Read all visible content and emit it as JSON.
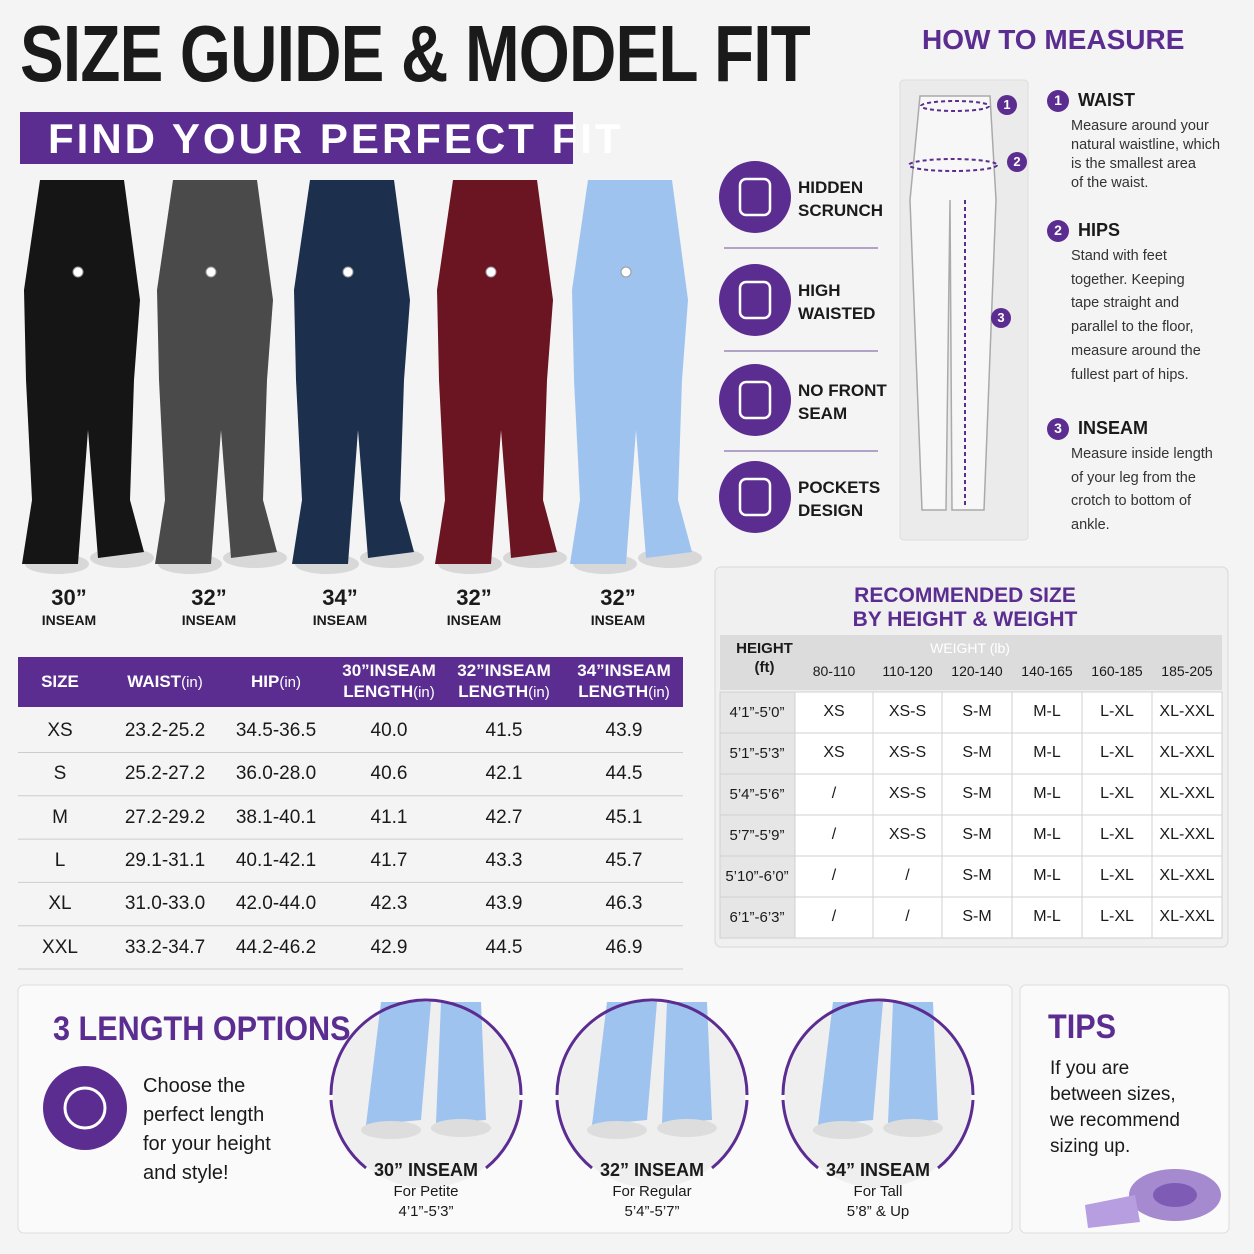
{
  "header": {
    "title": "SIZE GUIDE & MODEL FIT",
    "subtitle": "FIND YOUR PERFECT FIT"
  },
  "models": [
    {
      "inseam": "30”",
      "label": "INSEAM"
    },
    {
      "inseam": "32”",
      "label": "INSEAM"
    },
    {
      "inseam": "34”",
      "label": "INSEAM"
    },
    {
      "inseam": "32”",
      "label": "INSEAM"
    },
    {
      "inseam": "32”",
      "label": "INSEAM"
    }
  ],
  "features": [
    {
      "lines": [
        "HIDDEN",
        "SCRUNCH"
      ]
    },
    {
      "lines": [
        "HIGH",
        "WAISTED"
      ]
    },
    {
      "lines": [
        "NO FRONT",
        "SEAM"
      ]
    },
    {
      "lines": [
        "POCKETS",
        "DESIGN"
      ]
    }
  ],
  "measure": {
    "title": "HOW TO MEASURE",
    "markers": [
      "1",
      "2",
      "3"
    ],
    "steps": [
      {
        "number": "1",
        "title": "WAIST",
        "lines": [
          "Measure around your",
          "natural waistline, which",
          "is the smallest area",
          "of the waist."
        ]
      },
      {
        "number": "2",
        "title": "HIPS",
        "lines": [
          "Stand with feet",
          "together. Keeping",
          "tape straight and",
          "parallel to the floor,",
          "measure around the",
          "fullest part of hips."
        ]
      },
      {
        "number": "3",
        "title": "INSEAM",
        "lines": [
          "Measure inside length",
          "of your leg from the",
          "crotch to bottom of",
          "ankle."
        ]
      }
    ]
  },
  "size_table": {
    "headers": [
      {
        "lines": [
          "SIZE"
        ]
      },
      {
        "lines": [
          "WAIST"
        ],
        "unit": "(in)"
      },
      {
        "lines": [
          "HIP"
        ],
        "unit": "(in)"
      },
      {
        "lines": [
          "30”INSEAM",
          "LENGTH"
        ],
        "unit": "(in)"
      },
      {
        "lines": [
          "32”INSEAM",
          "LENGTH"
        ],
        "unit": "(in)"
      },
      {
        "lines": [
          "34”INSEAM",
          "LENGTH"
        ],
        "unit": "(in)"
      }
    ],
    "rows": [
      [
        "XS",
        "23.2-25.2",
        "34.5-36.5",
        "40.0",
        "41.5",
        "43.9"
      ],
      [
        "S",
        "25.2-27.2",
        "36.0-28.0",
        "40.6",
        "42.1",
        "44.5"
      ],
      [
        "M",
        "27.2-29.2",
        "38.1-40.1",
        "41.1",
        "42.7",
        "45.1"
      ],
      [
        "L",
        "29.1-31.1",
        "40.1-42.1",
        "41.7",
        "43.3",
        "45.7"
      ],
      [
        "XL",
        "31.0-33.0",
        "42.0-44.0",
        "42.3",
        "43.9",
        "46.3"
      ],
      [
        "XXL",
        "33.2-34.7",
        "44.2-46.2",
        "42.9",
        "44.5",
        "46.9"
      ]
    ]
  },
  "recommended": {
    "title": [
      "RECOMMENDED SIZE",
      "BY HEIGHT & WEIGHT"
    ],
    "height_header": [
      "HEIGHT",
      "(ft)"
    ],
    "weight_header": "WEIGHT (lb)",
    "weights": [
      "80-110",
      "110-120",
      "120-140",
      "140-165",
      "160-185",
      "185-205"
    ],
    "rows": [
      {
        "height": "4’1”-5’0”",
        "sizes": [
          "XS",
          "XS-S",
          "S-M",
          "M-L",
          "L-XL",
          "XL-XXL"
        ]
      },
      {
        "height": "5’1”-5’3”",
        "sizes": [
          "XS",
          "XS-S",
          "S-M",
          "M-L",
          "L-XL",
          "XL-XXL"
        ]
      },
      {
        "height": "5’4”-5’6”",
        "sizes": [
          "/",
          "XS-S",
          "S-M",
          "M-L",
          "L-XL",
          "XL-XXL"
        ]
      },
      {
        "height": "5’7”-5’9”",
        "sizes": [
          "/",
          "XS-S",
          "S-M",
          "M-L",
          "L-XL",
          "XL-XXL"
        ]
      },
      {
        "height": "5’10”-6’0”",
        "sizes": [
          "/",
          "/",
          "S-M",
          "M-L",
          "L-XL",
          "XL-XXL"
        ]
      },
      {
        "height": "6’1”-6’3”",
        "sizes": [
          "/",
          "/",
          "S-M",
          "M-L",
          "L-XL",
          "XL-XXL"
        ]
      }
    ]
  },
  "length_options": {
    "title": "3 LENGTH OPTIONS",
    "lines": [
      "Choose the",
      "perfect length",
      "for your height",
      "and style!"
    ],
    "options": [
      {
        "title": "30” INSEAM",
        "subtitle": "For Petite",
        "range": "4’1”-5’3”"
      },
      {
        "title": "32” INSEAM",
        "subtitle": "For Regular",
        "range": "5’4”-5’7”"
      },
      {
        "title": "34” INSEAM",
        "subtitle": "For Tall",
        "range": "5’8” & Up"
      }
    ]
  },
  "tips": {
    "title": "TIPS",
    "lines": [
      "If you are",
      "between sizes,",
      "we recommend",
      "sizing up."
    ]
  }
}
